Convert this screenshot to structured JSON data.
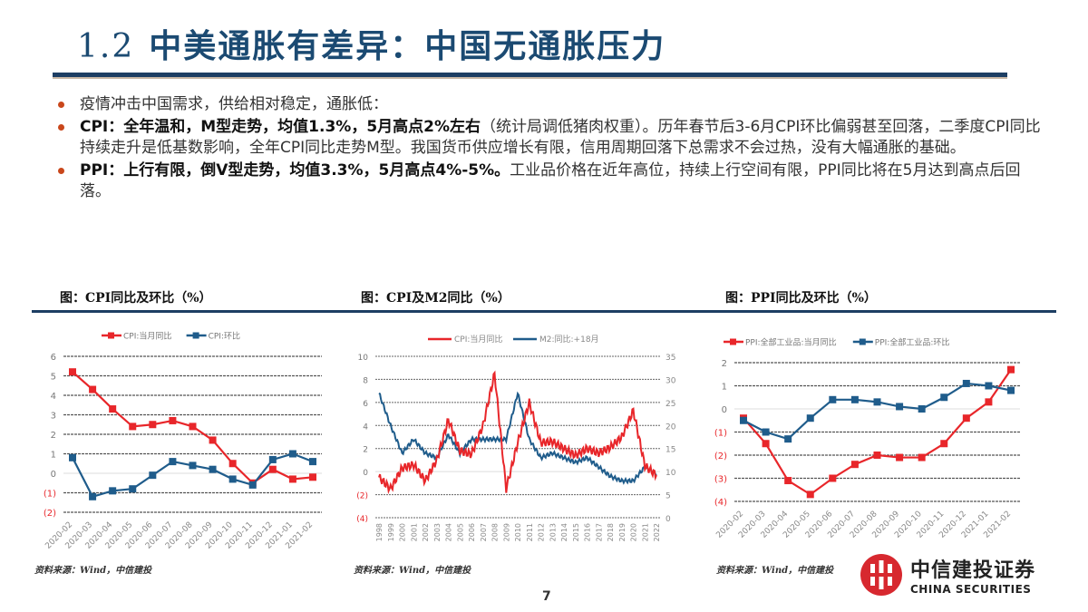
{
  "slide": {
    "section_number": "1.2",
    "title": "中美通胀有差异：中国无通胀压力",
    "page_number": "7"
  },
  "bullets": [
    {
      "bold": "",
      "text": "疫情冲击中国需求，供给相对稳定，通胀低："
    },
    {
      "bold": "CPI：全年温和，M型走势，均值1.3%，5月高点2%左右",
      "text": "（统计局调低猪肉权重）。历年春节后3-6月CPI环比偏弱甚至回落，二季度CPI同比持续走升是低基数影响，全年CPI同比走势M型。我国货币供应增长有限，信用周期回落下总需求不会过热，没有大幅通胀的基础。"
    },
    {
      "bold": "PPI：上行有限，倒V型走势，均值3.3%，5月高点4%-5%。",
      "text": "工业品价格在近年高位，持续上行空间有限，PPI同比将在5月达到高点后回落。"
    }
  ],
  "charts": {
    "cpi": {
      "title": "图：CPI同比及环比（%）",
      "source": "资料来源：Wind，中信建投"
    },
    "cpi_m2": {
      "title": "图：CPI及M2同比（%）",
      "source": "资料来源：Wind，中信建投"
    },
    "ppi": {
      "title": "图：PPI同比及环比（%）",
      "source": "资料来源：Wind，中信建投"
    }
  },
  "logo": {
    "cn": "中信建投证券",
    "en": "CHINA SECURITIES"
  },
  "colors": {
    "red": "#e8262a",
    "blue": "#1f5c8b",
    "title": "#1b4a72",
    "bullet": "#c9471b"
  },
  "chart_data": [
    {
      "type": "line",
      "title": "CPI同比及环比（%）",
      "categories": [
        "2020-02",
        "2020-03",
        "2020-04",
        "2020-05",
        "2020-06",
        "2020-07",
        "2020-08",
        "2020-09",
        "2020-10",
        "2020-11",
        "2020-12",
        "2021-01",
        "2021-02"
      ],
      "series": [
        {
          "name": "CPI:当月同比",
          "color": "#e8262a",
          "values": [
            5.2,
            4.3,
            3.3,
            2.4,
            2.5,
            2.7,
            2.4,
            1.7,
            0.5,
            -0.5,
            0.2,
            -0.3,
            -0.2
          ]
        },
        {
          "name": "CPI:环比",
          "color": "#1f5c8b",
          "values": [
            0.8,
            -1.2,
            -0.9,
            -0.8,
            -0.1,
            0.6,
            0.4,
            0.2,
            -0.3,
            -0.6,
            0.7,
            1.0,
            0.6
          ]
        }
      ],
      "yticks": [
        "6",
        "5",
        "4",
        "3",
        "2",
        "1",
        "0",
        "(1)",
        "(2)"
      ],
      "ylim": [
        -2,
        6
      ],
      "grid": true,
      "legend_position": "top"
    },
    {
      "type": "line",
      "title": "CPI及M2同比（%）",
      "categories": [
        "1998",
        "1999",
        "2000",
        "2001",
        "2002",
        "2003",
        "2004",
        "2005",
        "2006",
        "2007",
        "2008",
        "2009",
        "2010",
        "2011",
        "2012",
        "2013",
        "2014",
        "2015",
        "2016",
        "2017",
        "2018",
        "2019",
        "2020",
        "2021",
        "2022"
      ],
      "series": [
        {
          "name": "CPI:当月同比",
          "color": "#e8262a",
          "axis": "left",
          "values": [
            -0.5,
            -1.5,
            0.3,
            0.6,
            -0.8,
            1.0,
            4.5,
            1.8,
            1.5,
            4.0,
            8.5,
            -1.5,
            2.5,
            6.0,
            2.5,
            2.6,
            2.0,
            1.4,
            2.0,
            1.6,
            2.1,
            3.0,
            5.3,
            0.5,
            -0.3
          ]
        },
        {
          "name": "M2:同比:+18月",
          "color": "#1f5c8b",
          "axis": "right",
          "values": [
            27,
            20,
            14,
            17,
            14,
            13,
            18,
            14,
            17,
            17,
            17,
            17,
            27,
            17,
            13,
            14,
            13,
            12,
            13,
            11,
            9,
            8,
            8,
            11,
            9.5
          ]
        }
      ],
      "yticks_left": [
        "10",
        "8",
        "6",
        "4",
        "2",
        "0",
        "(2)",
        "(4)"
      ],
      "yticks_right": [
        "35",
        "30",
        "25",
        "20",
        "15",
        "10",
        "5",
        "0"
      ],
      "ylim_left": [
        -4,
        10
      ],
      "ylim_right": [
        0,
        35
      ],
      "grid": true,
      "legend_position": "top"
    },
    {
      "type": "line",
      "title": "PPI同比及环比（%）",
      "categories": [
        "2020-02",
        "2020-03",
        "2020-04",
        "2020-05",
        "2020-06",
        "2020-07",
        "2020-08",
        "2020-09",
        "2020-10",
        "2020-11",
        "2020-12",
        "2021-01",
        "2021-02"
      ],
      "series": [
        {
          "name": "PPI:全部工业品:当月同比",
          "color": "#e8262a",
          "values": [
            -0.4,
            -1.5,
            -3.1,
            -3.7,
            -3.0,
            -2.4,
            -2.0,
            -2.1,
            -2.1,
            -1.5,
            -0.4,
            0.3,
            1.7
          ]
        },
        {
          "name": "PPI:全部工业品:环比",
          "color": "#1f5c8b",
          "values": [
            -0.5,
            -1.0,
            -1.3,
            -0.4,
            0.4,
            0.4,
            0.3,
            0.1,
            0.0,
            0.5,
            1.1,
            1.0,
            0.8
          ]
        }
      ],
      "yticks": [
        "2",
        "1",
        "0",
        "(1)",
        "(2)",
        "(3)",
        "(4)"
      ],
      "ylim": [
        -4,
        2
      ],
      "grid": true,
      "legend_position": "top"
    }
  ]
}
